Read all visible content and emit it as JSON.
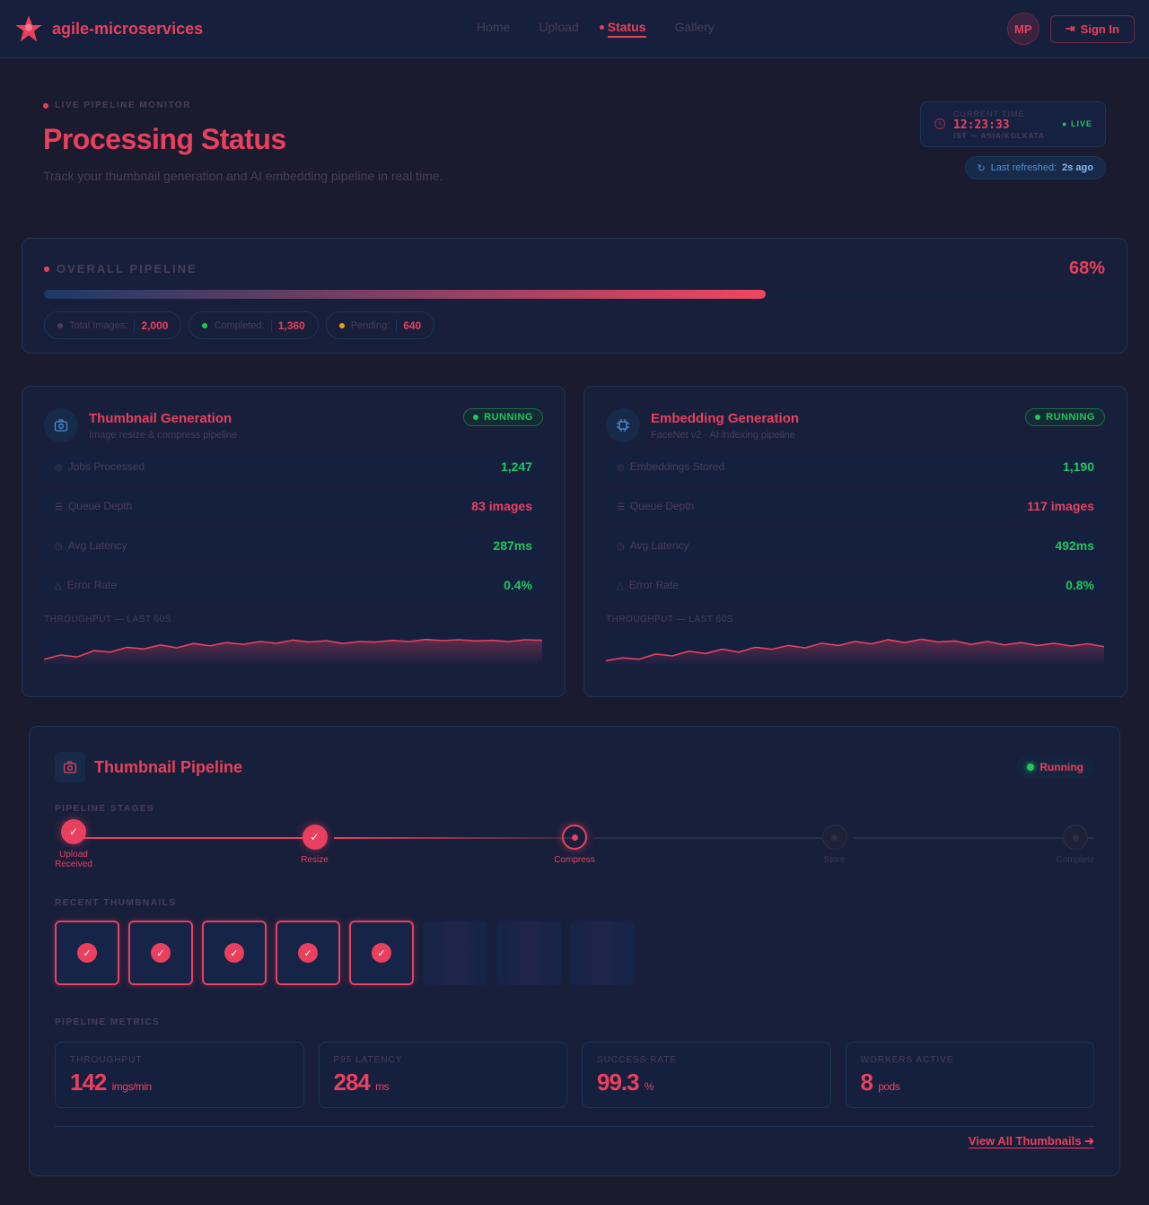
{
  "nav": {
    "brand": "agile-microservices",
    "links": [
      "Home",
      "Upload",
      "Status",
      "Gallery"
    ],
    "active": "Status",
    "avatar": "MP",
    "signin": "Sign In"
  },
  "hero": {
    "eyebrow": "LIVE PIPELINE MONITOR",
    "title": "Processing Status",
    "subtitle": "Track your thumbnail generation and AI embedding pipeline in real time."
  },
  "clock": {
    "label": "CURRENT TIME",
    "time": "12:23:33",
    "tz": "IST — ASIA/KOLKATA",
    "live": "LIVE"
  },
  "refresh": {
    "label": "Last refreshed:",
    "value": "2s ago"
  },
  "overall": {
    "title": "OVERALL PIPELINE",
    "percent_label": "68%",
    "progress": 68,
    "chips": [
      {
        "label": "Total Images:",
        "value": "2,000",
        "color": "#4a3d58"
      },
      {
        "label": "Completed:",
        "value": "1,360",
        "color": "#22c55e"
      },
      {
        "label": "Pending:",
        "value": "640",
        "color": "#f59e0b"
      }
    ]
  },
  "services": [
    {
      "title": "Thumbnail Generation",
      "subtitle": "Image resize & compress pipeline",
      "status": "RUNNING",
      "icon": "camera-icon",
      "rows": [
        {
          "label": "Jobs Processed",
          "value": "1,247",
          "tone": "g"
        },
        {
          "label": "Queue Depth",
          "value": "83 images",
          "tone": "r"
        },
        {
          "label": "Avg Latency",
          "value": "287ms",
          "tone": "g"
        },
        {
          "label": "Error Rate",
          "value": "0.4%",
          "tone": "g"
        }
      ],
      "spark_label": "THROUGHPUT — LAST 60S",
      "spark": [
        10,
        25,
        18,
        40,
        35,
        52,
        46,
        60,
        50,
        65,
        57,
        68,
        62,
        72,
        66,
        77,
        70,
        75,
        65,
        72,
        70,
        76,
        72,
        79,
        75,
        78,
        74,
        76,
        72,
        78,
        76
      ]
    },
    {
      "title": "Embedding Generation",
      "subtitle": "FaceNet v2 · AI indexing pipeline",
      "status": "RUNNING",
      "icon": "chip-icon",
      "rows": [
        {
          "label": "Embeddings Stored",
          "value": "1,190",
          "tone": "g"
        },
        {
          "label": "Queue Depth",
          "value": "117 images",
          "tone": "r"
        },
        {
          "label": "Avg Latency",
          "value": "492ms",
          "tone": "g"
        },
        {
          "label": "Error Rate",
          "value": "0.8%",
          "tone": "g"
        }
      ],
      "spark_label": "THROUGHPUT — LAST 60S",
      "spark": [
        5,
        15,
        10,
        28,
        22,
        38,
        30,
        45,
        35,
        52,
        45,
        58,
        50,
        66,
        58,
        72,
        64,
        78,
        68,
        80,
        70,
        74,
        62,
        72,
        60,
        68,
        58,
        66,
        56,
        64,
        54
      ]
    }
  ],
  "pipeline": {
    "title": "Thumbnail Pipeline",
    "status": "Running",
    "stages_label": "PIPELINE STAGES",
    "stages": [
      {
        "label": "Upload Received",
        "state": "done"
      },
      {
        "label": "Resize",
        "state": "done"
      },
      {
        "label": "Compress",
        "state": "current"
      },
      {
        "label": "Store",
        "state": "pending"
      },
      {
        "label": "Complete",
        "state": "pending"
      }
    ],
    "thumbs_label": "RECENT THUMBNAILS",
    "thumbs": [
      "done",
      "done",
      "done",
      "done",
      "done",
      "empty",
      "empty",
      "empty"
    ],
    "metrics_label": "PIPELINE METRICS",
    "metrics": [
      {
        "label": "THROUGHPUT",
        "value": "142",
        "unit": "imgs/min"
      },
      {
        "label": "P95 LATENCY",
        "value": "284",
        "unit": "ms"
      },
      {
        "label": "SUCCESS RATE",
        "value": "99.3",
        "unit": "%"
      },
      {
        "label": "WORKERS ACTIVE",
        "value": "8",
        "unit": "pods"
      }
    ],
    "view_all": "View All Thumbnails"
  }
}
